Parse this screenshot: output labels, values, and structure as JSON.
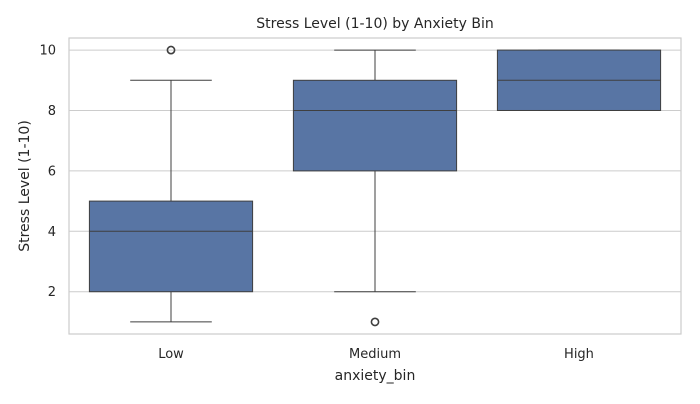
{
  "chart_data": {
    "type": "box",
    "title": "Stress Level (1-10) by Anxiety Bin",
    "xlabel": "anxiety_bin",
    "ylabel": "Stress Level (1-10)",
    "ylim": [
      0.6,
      10.4
    ],
    "yticks": [
      2,
      4,
      6,
      8,
      10
    ],
    "categories": [
      "Low",
      "Medium",
      "High"
    ],
    "boxes": [
      {
        "category": "Low",
        "whislo": 1,
        "q1": 2,
        "med": 4,
        "q3": 5,
        "whishi": 9,
        "fliers": [
          10
        ]
      },
      {
        "category": "Medium",
        "whislo": 2,
        "q1": 6,
        "med": 8,
        "q3": 9,
        "whishi": 10,
        "fliers": [
          1
        ]
      },
      {
        "category": "High",
        "whislo": 8,
        "q1": 8,
        "med": 9,
        "q3": 10,
        "whishi": 10,
        "fliers": []
      }
    ],
    "grid": true,
    "colors": {
      "box_fill": "#5875a4",
      "line": "#3f3f3f",
      "grid": "#cccccc",
      "background": "#ffffff"
    }
  }
}
